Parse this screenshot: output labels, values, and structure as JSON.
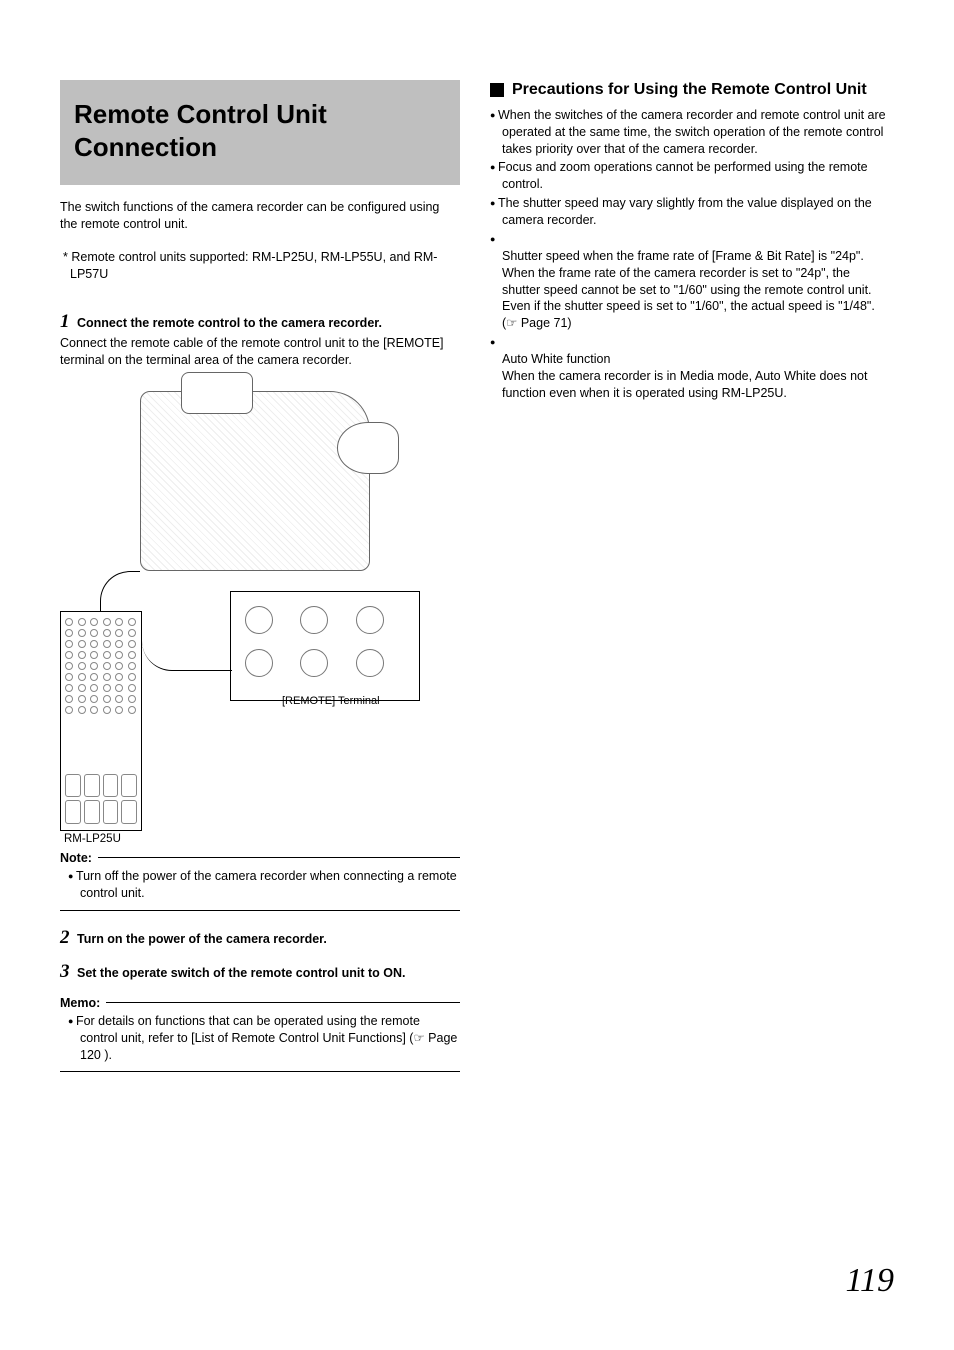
{
  "title": "Remote Control Unit Connection",
  "intro": "The switch functions of the camera recorder can be configured using the remote control unit.",
  "supported": "* Remote control units supported: RM-LP25U, RM-LP55U, and RM-LP57U",
  "step1": {
    "num": "1",
    "head": "Connect the remote control to the camera recorder.",
    "body": "Connect the remote cable of the remote control unit to the [REMOTE] terminal on the terminal area of the camera recorder."
  },
  "diagram": {
    "terminal_label": "[REMOTE] Terminal",
    "remote_label": "RM-LP25U"
  },
  "note": {
    "head": "Note:",
    "items": [
      "Turn off the power of the camera recorder when connecting a remote control unit."
    ]
  },
  "step2": {
    "num": "2",
    "head": "Turn on the power of the camera recorder."
  },
  "step3": {
    "num": "3",
    "head": "Set the operate switch of the remote control unit to ON."
  },
  "memo": {
    "head": "Memo:",
    "items": [
      "For details on functions that can be operated using the remote control unit, refer to [List of Remote Control Unit Functions] (☞ Page 120 )."
    ]
  },
  "right": {
    "heading": "Precautions for Using the Remote Control Unit",
    "bullets": [
      "When the switches of the camera recorder and remote control unit are operated at the same time, the switch operation of the remote control takes priority over that of the camera recorder.",
      "Focus and zoom operations cannot be performed using the remote control.",
      "The shutter speed may vary slightly from the value displayed on the camera recorder.",
      "Shutter speed when the frame rate of [Frame & Bit Rate] is \"24p\".\nWhen the frame rate of the camera recorder is set to \"24p\", the shutter speed cannot be set to \"1/60\" using the remote control unit. Even if the shutter speed is set to \"1/60\", the actual speed is \"1/48\". (☞ Page 71)",
      "Auto White function\nWhen the camera recorder is in Media mode, Auto White does not function even when it is operated using RM-LP25U."
    ]
  },
  "page_number": "119"
}
